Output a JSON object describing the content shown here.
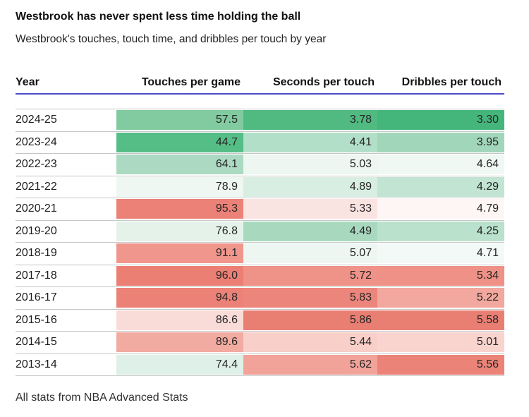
{
  "header": {
    "title": "Westbrook has never spent less time holding the ball",
    "subtitle": "Westbrook's touches, touch time, and dribbles per touch by year"
  },
  "table": {
    "accent_underline_color": "#4c4bc8",
    "separator_color": "#c6c6c6",
    "columns": [
      "Year",
      "Touches per game",
      "Seconds per touch",
      "Dribbles per touch"
    ],
    "rows": [
      {
        "year": "2024-25",
        "cells": [
          {
            "v": "57.5",
            "bg": "#82cba0"
          },
          {
            "v": "3.78",
            "bg": "#50ba81"
          },
          {
            "v": "3.30",
            "bg": "#45b67b"
          }
        ]
      },
      {
        "year": "2023-24",
        "cells": [
          {
            "v": "44.7",
            "bg": "#55bd86"
          },
          {
            "v": "4.41",
            "bg": "#b2dfc8"
          },
          {
            "v": "3.95",
            "bg": "#a2d6ba"
          }
        ]
      },
      {
        "year": "2022-23",
        "cells": [
          {
            "v": "64.1",
            "bg": "#abd9c2"
          },
          {
            "v": "5.03",
            "bg": "#edf6f1"
          },
          {
            "v": "4.64",
            "bg": "#f0f8f4"
          }
        ]
      },
      {
        "year": "2021-22",
        "cells": [
          {
            "v": "78.9",
            "bg": "#eff7f2"
          },
          {
            "v": "4.89",
            "bg": "#d9eee3"
          },
          {
            "v": "4.29",
            "bg": "#c2e4d2"
          }
        ]
      },
      {
        "year": "2020-21",
        "cells": [
          {
            "v": "95.3",
            "bg": "#ec8177"
          },
          {
            "v": "5.33",
            "bg": "#fae4e1"
          },
          {
            "v": "4.79",
            "bg": "#fdf6f5"
          }
        ]
      },
      {
        "year": "2019-20",
        "cells": [
          {
            "v": "76.8",
            "bg": "#e4f2ea"
          },
          {
            "v": "4.49",
            "bg": "#a8d9bf"
          },
          {
            "v": "4.25",
            "bg": "#b9e1cb"
          }
        ]
      },
      {
        "year": "2018-19",
        "cells": [
          {
            "v": "91.1",
            "bg": "#f0968c"
          },
          {
            "v": "5.07",
            "bg": "#edf6f1"
          },
          {
            "v": "4.71",
            "bg": "#f3f9f6"
          }
        ]
      },
      {
        "year": "2017-18",
        "cells": [
          {
            "v": "96.0",
            "bg": "#ec7f74"
          },
          {
            "v": "5.72",
            "bg": "#ef9288"
          },
          {
            "v": "5.34",
            "bg": "#ef9187"
          }
        ]
      },
      {
        "year": "2016-17",
        "cells": [
          {
            "v": "94.8",
            "bg": "#eb8177"
          },
          {
            "v": "5.83",
            "bg": "#ec857b"
          },
          {
            "v": "5.22",
            "bg": "#f2a89e"
          }
        ]
      },
      {
        "year": "2015-16",
        "cells": [
          {
            "v": "86.6",
            "bg": "#f9dcd8"
          },
          {
            "v": "5.86",
            "bg": "#e97e73"
          },
          {
            "v": "5.58",
            "bg": "#e97e73"
          }
        ]
      },
      {
        "year": "2014-15",
        "cells": [
          {
            "v": "89.6",
            "bg": "#f2aba1"
          },
          {
            "v": "5.44",
            "bg": "#f8cfc9"
          },
          {
            "v": "5.01",
            "bg": "#f9d4cf"
          }
        ]
      },
      {
        "year": "2013-14",
        "cells": [
          {
            "v": "74.4",
            "bg": "#def0e7"
          },
          {
            "v": "5.62",
            "bg": "#f1a399"
          },
          {
            "v": "5.56",
            "bg": "#eb8378"
          }
        ]
      }
    ]
  },
  "footer": {
    "note": "All stats from NBA Advanced Stats"
  },
  "chart_data": {
    "type": "table",
    "title": "Westbrook has never spent less time holding the ball",
    "subtitle": "Westbrook's touches, touch time, and dribbles per touch by year",
    "note": "All stats from NBA Advanced Stats",
    "columns": [
      "Year",
      "Touches per game",
      "Seconds per touch",
      "Dribbles per touch"
    ],
    "categories": [
      "2024-25",
      "2023-24",
      "2022-23",
      "2021-22",
      "2020-21",
      "2019-20",
      "2018-19",
      "2017-18",
      "2016-17",
      "2015-16",
      "2014-15",
      "2013-14"
    ],
    "series": [
      {
        "name": "Touches per game",
        "values": [
          57.5,
          44.7,
          64.1,
          78.9,
          95.3,
          76.8,
          91.1,
          96.0,
          94.8,
          86.6,
          89.6,
          74.4
        ]
      },
      {
        "name": "Seconds per touch",
        "values": [
          3.78,
          4.41,
          5.03,
          4.89,
          5.33,
          4.49,
          5.07,
          5.72,
          5.83,
          5.86,
          5.44,
          5.62
        ]
      },
      {
        "name": "Dribbles per touch",
        "values": [
          3.3,
          3.95,
          4.64,
          4.29,
          4.79,
          4.25,
          4.71,
          5.34,
          5.22,
          5.58,
          5.01,
          5.56
        ]
      }
    ],
    "color_scale": {
      "low": "#57bb8a",
      "mid": "#ffffff",
      "high": "#e67c73",
      "scope": "per-column",
      "low_means": "min value green, max value red"
    }
  }
}
